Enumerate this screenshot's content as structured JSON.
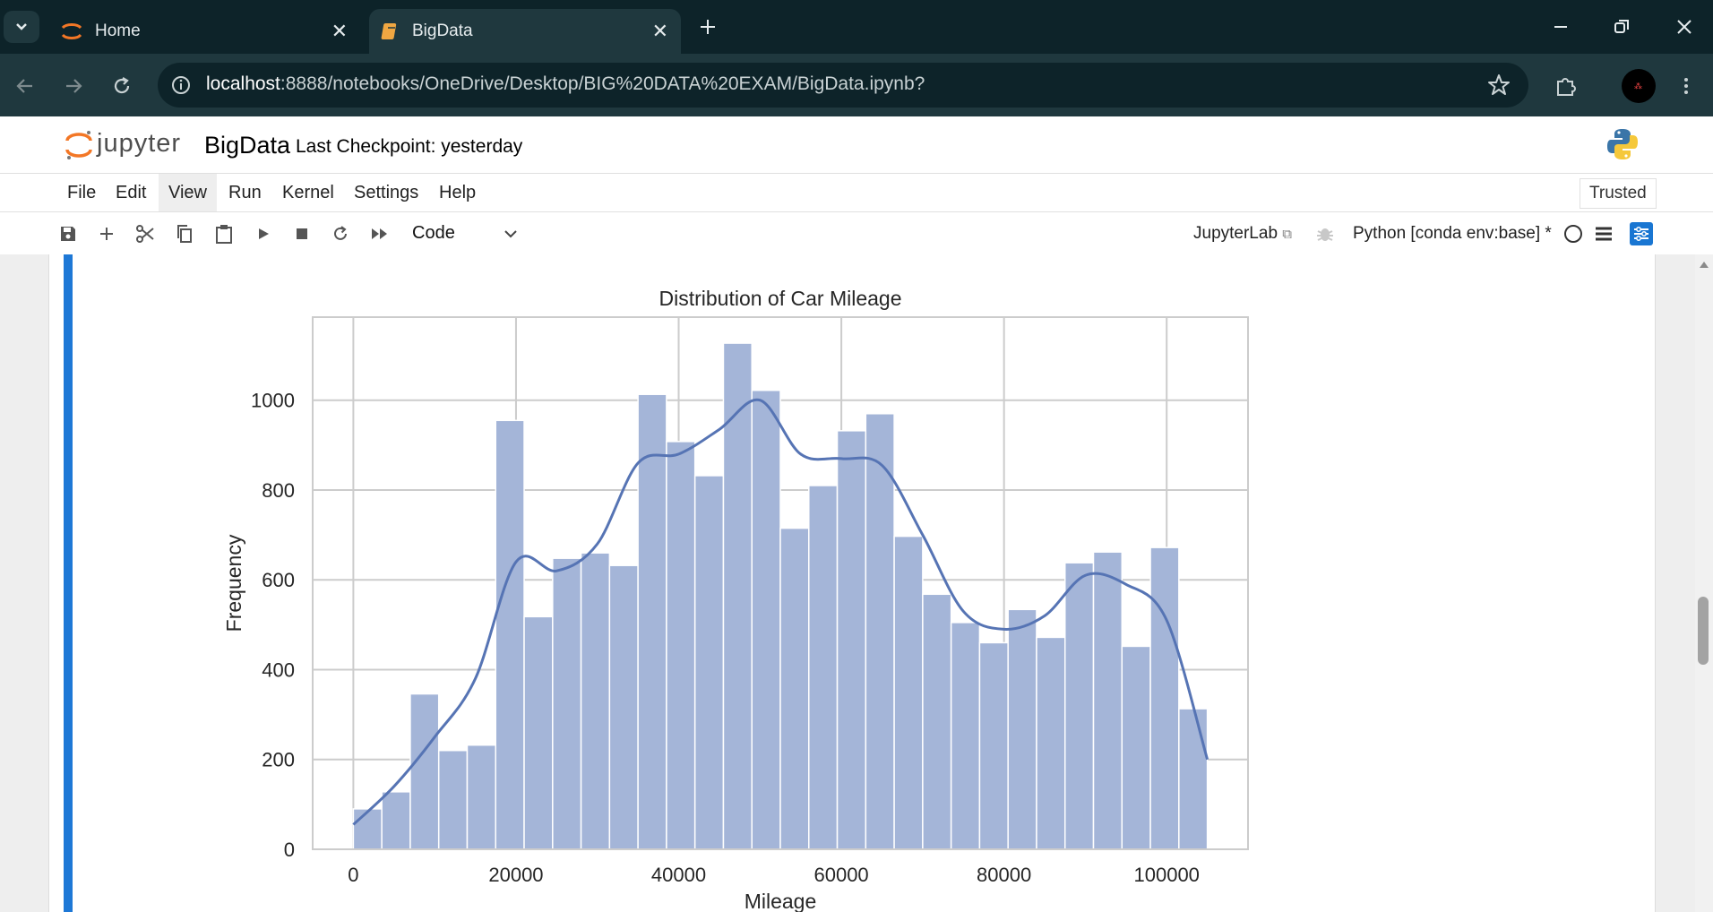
{
  "browser": {
    "tabs": [
      {
        "label": "Home",
        "icon": "jupyter-icon",
        "active": false
      },
      {
        "label": "BigData",
        "icon": "notebook-icon",
        "active": true
      }
    ],
    "url_host": "localhost",
    "url_path": ":8888/notebooks/OneDrive/Desktop/BIG%20DATA%20EXAM/BigData.ipynb?"
  },
  "jupyter": {
    "logo_text": "jupyter",
    "notebook_title": "BigData",
    "checkpoint": "Last Checkpoint: yesterday",
    "menu": [
      "File",
      "Edit",
      "View",
      "Run",
      "Kernel",
      "Settings",
      "Help"
    ],
    "active_menu": "View",
    "trusted": "Trusted",
    "cell_type": "Code",
    "jupyterlab_link": "JupyterLab",
    "kernel": "Python [conda env:base] *"
  },
  "chart_data": {
    "type": "bar",
    "title": "Distribution of Car Mileage",
    "xlabel": "Mileage",
    "ylabel": "Frequency",
    "xlim": [
      -5000,
      110000
    ],
    "ylim": [
      0,
      1185
    ],
    "xticks": [
      0,
      20000,
      40000,
      60000,
      80000,
      100000
    ],
    "yticks": [
      0,
      200,
      400,
      600,
      800,
      1000
    ],
    "grid": true,
    "bin_start": 0,
    "bin_width": 3500,
    "values": [
      90,
      128,
      346,
      220,
      232,
      955,
      518,
      648,
      660,
      632,
      1013,
      908,
      832,
      1127,
      1022,
      715,
      810,
      932,
      970,
      697,
      568,
      505,
      460,
      534,
      472,
      638,
      662,
      452,
      672,
      313
    ],
    "kde": [
      [
        0,
        55
      ],
      [
        5000,
        140
      ],
      [
        10000,
        250
      ],
      [
        15000,
        380
      ],
      [
        20000,
        640
      ],
      [
        25000,
        620
      ],
      [
        30000,
        680
      ],
      [
        35000,
        860
      ],
      [
        40000,
        880
      ],
      [
        45000,
        935
      ],
      [
        50000,
        1000
      ],
      [
        55000,
        880
      ],
      [
        60000,
        870
      ],
      [
        65000,
        855
      ],
      [
        70000,
        700
      ],
      [
        75000,
        530
      ],
      [
        80000,
        490
      ],
      [
        85000,
        520
      ],
      [
        90000,
        610
      ],
      [
        95000,
        590
      ],
      [
        100000,
        510
      ],
      [
        105000,
        200
      ]
    ],
    "colors": {
      "bar": "#a4b5d8",
      "bar_edge": "#ffffff",
      "kde": "#5674b4",
      "grid": "#cccccc"
    }
  }
}
